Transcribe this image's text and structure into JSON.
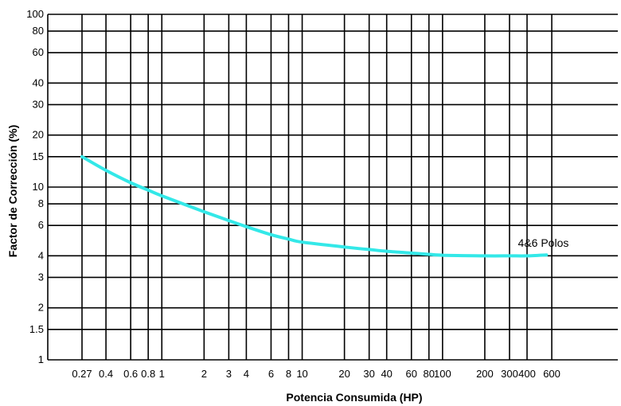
{
  "chart_data": {
    "type": "line",
    "xlabel": "Potencia Consumida (HP)",
    "ylabel": "Factor de Corrección (%)",
    "x_scale": "log",
    "y_scale": "log",
    "xlim": [
      0.15,
      650
    ],
    "ylim": [
      1,
      100
    ],
    "x_ticks": [
      {
        "value": 0.27,
        "label": "0.27"
      },
      {
        "value": 0.4,
        "label": "0.4"
      },
      {
        "value": 0.6,
        "label": "0.6"
      },
      {
        "value": 0.8,
        "label": "0.8"
      },
      {
        "value": 1,
        "label": "1"
      },
      {
        "value": 2,
        "label": "2"
      },
      {
        "value": 3,
        "label": "3"
      },
      {
        "value": 4,
        "label": "4"
      },
      {
        "value": 6,
        "label": "6"
      },
      {
        "value": 8,
        "label": "8"
      },
      {
        "value": 10,
        "label": "10"
      },
      {
        "value": 20,
        "label": "20"
      },
      {
        "value": 30,
        "label": "30"
      },
      {
        "value": 40,
        "label": "40"
      },
      {
        "value": 60,
        "label": "60"
      },
      {
        "value": 80,
        "label": "80"
      },
      {
        "value": 100,
        "label": "100"
      },
      {
        "value": 200,
        "label": "200"
      },
      {
        "value": 300,
        "label": "300"
      },
      {
        "value": 400,
        "label": "400"
      },
      {
        "value": 600,
        "label": "600"
      }
    ],
    "y_ticks": [
      {
        "value": 1,
        "label": "1"
      },
      {
        "value": 1.5,
        "label": "1.5"
      },
      {
        "value": 2,
        "label": "2"
      },
      {
        "value": 3,
        "label": "3"
      },
      {
        "value": 4,
        "label": "4"
      },
      {
        "value": 6,
        "label": "6"
      },
      {
        "value": 8,
        "label": "8"
      },
      {
        "value": 10,
        "label": "10"
      },
      {
        "value": 15,
        "label": "15"
      },
      {
        "value": 20,
        "label": "20"
      },
      {
        "value": 30,
        "label": "30"
      },
      {
        "value": 40,
        "label": "40"
      },
      {
        "value": 60,
        "label": "60"
      },
      {
        "value": 80,
        "label": "80"
      },
      {
        "value": 100,
        "label": "100"
      }
    ],
    "grid": true,
    "series": [
      {
        "name": "4&6 Polos",
        "color": "#33e8e8",
        "x": [
          0.27,
          0.4,
          0.6,
          0.8,
          1,
          2,
          3,
          4,
          6,
          8,
          10,
          20,
          30,
          40,
          60,
          80,
          100,
          200,
          300,
          400,
          550
        ],
        "y": [
          15,
          12.5,
          10.6,
          9.6,
          8.9,
          7.2,
          6.4,
          5.9,
          5.3,
          5.0,
          4.8,
          4.5,
          4.35,
          4.25,
          4.15,
          4.08,
          4.03,
          4.0,
          4.0,
          4.0,
          4.05
        ]
      }
    ]
  }
}
